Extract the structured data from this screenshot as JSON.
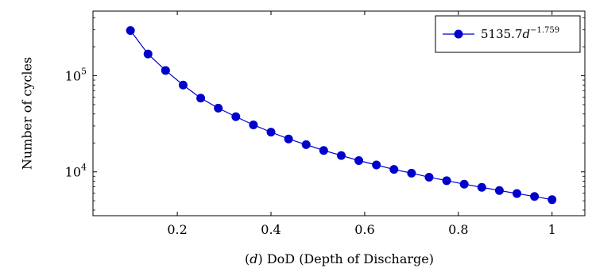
{
  "chart_data": {
    "type": "line",
    "title": "",
    "xlabel_prefix": "(",
    "xlabel_var": "d",
    "xlabel_rest": ") DoD (Depth of Discharge)",
    "ylabel": "Number of cycles",
    "xlim": [
      0.02,
      1.07
    ],
    "ylim": [
      3500,
      470000
    ],
    "y_scale": "log",
    "grid": false,
    "legend_position": "top-right",
    "x_ticks": [
      0.2,
      0.4,
      0.6,
      0.8,
      1.0
    ],
    "x_tick_labels": [
      "0.2",
      "0.4",
      "0.6",
      "0.8",
      "1"
    ],
    "y_ticks": [
      10000,
      100000
    ],
    "y_tick_labels": [
      {
        "base": "10",
        "exp": "4"
      },
      {
        "base": "10",
        "exp": "5"
      }
    ],
    "series": [
      {
        "legend_prefix": "5135.7",
        "legend_var": "d",
        "legend_exp": "−1.759",
        "color": "#0000cc",
        "x": [
          0.1,
          0.1375,
          0.175,
          0.2125,
          0.25,
          0.2875,
          0.325,
          0.3625,
          0.4,
          0.4375,
          0.475,
          0.5125,
          0.55,
          0.5875,
          0.625,
          0.6625,
          0.7,
          0.7375,
          0.775,
          0.8125,
          0.85,
          0.8875,
          0.925,
          0.9625,
          1.0
        ],
        "y": [
          295100,
          168300,
          113500,
          80000,
          58500,
          46000,
          37500,
          30800,
          25900,
          22000,
          19200,
          16700,
          14800,
          13100,
          11800,
          10600,
          9700,
          8800,
          8100,
          7450,
          6900,
          6400,
          5950,
          5550,
          5136
        ]
      }
    ]
  }
}
